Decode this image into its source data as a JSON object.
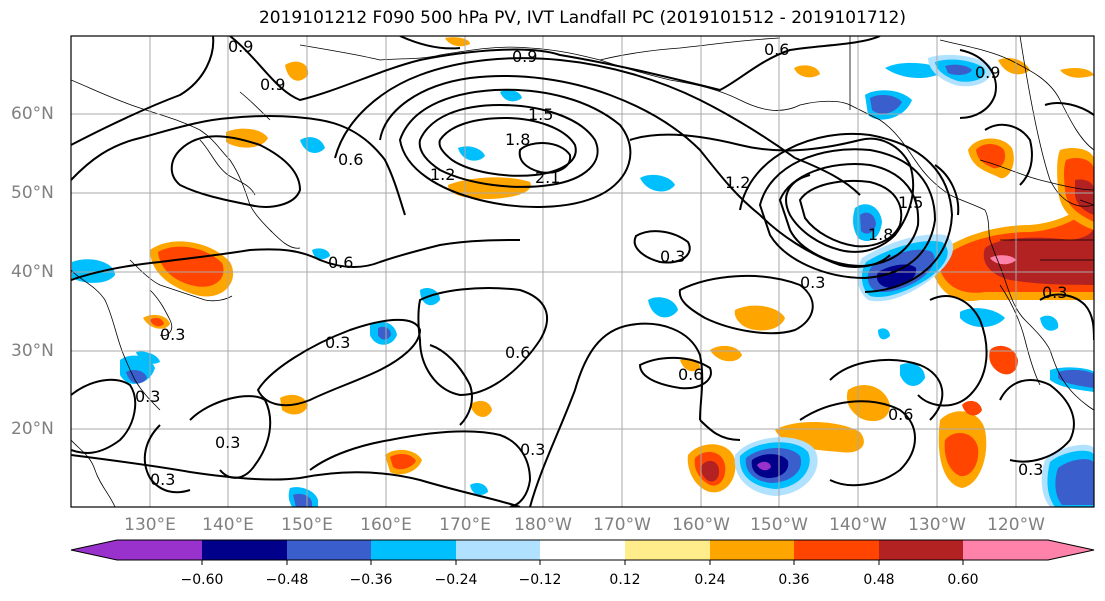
{
  "title": "2019101212 F090 500 hPa PV, IVT Landfall PC (2019101512 - 2019101712)",
  "latitude_labels": [
    "60°N",
    "50°N",
    "40°N",
    "30°N",
    "20°N"
  ],
  "longitude_labels": [
    "130°E",
    "140°E",
    "150°E",
    "160°E",
    "170°E",
    "180°W",
    "170°W",
    "160°W",
    "150°W",
    "140°W",
    "130°W",
    "120°W"
  ],
  "contour_labels": [
    "0.9",
    "0.9",
    "0.6",
    "0.9",
    "1.5",
    "1.8",
    "2.1",
    "1.2",
    "0.6",
    "0.6",
    "0.3",
    "0.6",
    "0.3",
    "0.3",
    "0.3",
    "0.6",
    "0.3",
    "0.3",
    "1.2",
    "1.5",
    "1.8",
    "0.9",
    "0.3",
    "0.6",
    "0.3",
    "0.3",
    "0.3"
  ],
  "colorbar": {
    "ticks": [
      "−0.60",
      "−0.48",
      "−0.36",
      "−0.24",
      "−0.12",
      "0.12",
      "0.24",
      "0.36",
      "0.48",
      "0.60"
    ],
    "colors": [
      "#9932cc",
      "#00008b",
      "#3a5fcd",
      "#00bfff",
      "#b0e2ff",
      "#ffffff",
      "#ffec8b",
      "#ffa500",
      "#ff4500",
      "#b22222",
      "#ff82ab"
    ]
  }
}
